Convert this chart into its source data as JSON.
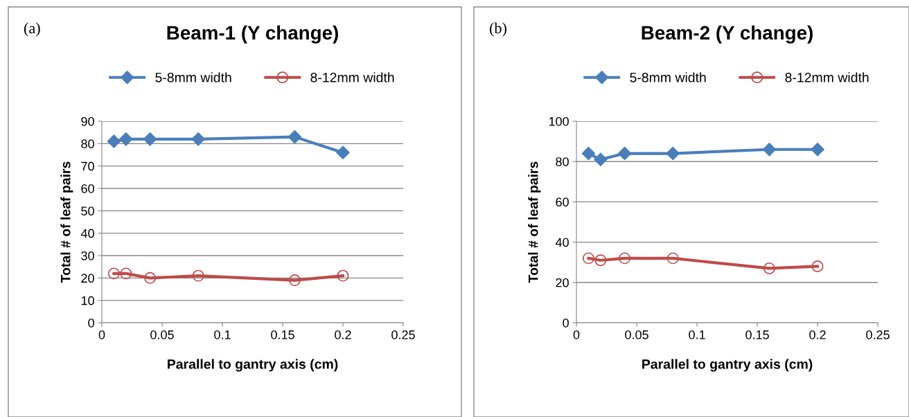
{
  "chart_data": [
    {
      "type": "line",
      "title": "Beam-1 (Y change)",
      "xlabel": "Parallel to gantry axis (cm)",
      "ylabel": "Total # of leaf pairs",
      "annotations": [
        "(a)"
      ],
      "xlim": [
        0,
        0.25
      ],
      "xticks": [
        0,
        0.05,
        0.1,
        0.15,
        0.2,
        0.25
      ],
      "ylim": [
        0,
        90
      ],
      "yticks": [
        0,
        10,
        20,
        30,
        40,
        50,
        60,
        70,
        80,
        90
      ],
      "grid": "y",
      "legend": "top",
      "series": [
        {
          "name": "5-8mm width",
          "color": "#4a7ebb",
          "marker": "diamond",
          "x": [
            0.01,
            0.02,
            0.04,
            0.08,
            0.16,
            0.2
          ],
          "values": [
            81,
            82,
            82,
            82,
            83,
            76
          ]
        },
        {
          "name": "8-12mm width",
          "color": "#be4b48",
          "marker": "circle",
          "x": [
            0.01,
            0.02,
            0.04,
            0.08,
            0.16,
            0.2
          ],
          "values": [
            22,
            22,
            20,
            21,
            19,
            21
          ]
        }
      ]
    },
    {
      "type": "line",
      "title": "Beam-2 (Y change)",
      "xlabel": "Parallel to gantry axis (cm)",
      "ylabel": "Total # of leaf pairs",
      "annotations": [
        "(b)"
      ],
      "xlim": [
        0,
        0.25
      ],
      "xticks": [
        0,
        0.05,
        0.1,
        0.15,
        0.2,
        0.25
      ],
      "ylim": [
        0,
        100
      ],
      "yticks": [
        0,
        20,
        40,
        60,
        80,
        100
      ],
      "grid": "y",
      "legend": "top",
      "series": [
        {
          "name": "5-8mm width",
          "color": "#4a7ebb",
          "marker": "diamond",
          "x": [
            0.01,
            0.02,
            0.04,
            0.08,
            0.16,
            0.2
          ],
          "values": [
            84,
            81,
            84,
            84,
            86,
            86
          ]
        },
        {
          "name": "8-12mm width",
          "color": "#be4b48",
          "marker": "circle",
          "x": [
            0.01,
            0.02,
            0.04,
            0.08,
            0.16,
            0.2
          ],
          "values": [
            32,
            31,
            32,
            32,
            27,
            28
          ]
        }
      ]
    }
  ]
}
